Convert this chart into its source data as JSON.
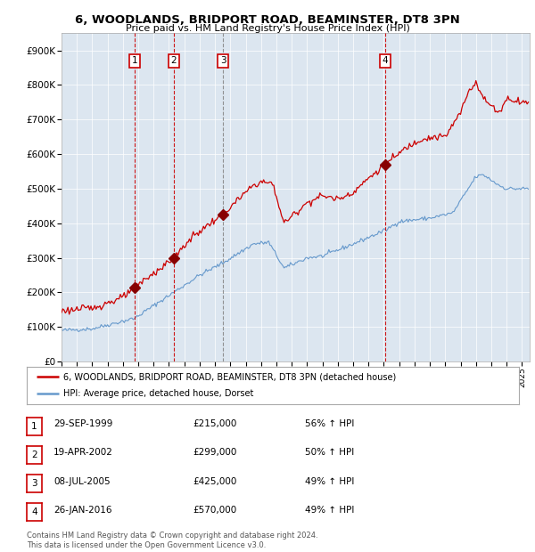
{
  "title": "6, WOODLANDS, BRIDPORT ROAD, BEAMINSTER, DT8 3PN",
  "subtitle": "Price paid vs. HM Land Registry's House Price Index (HPI)",
  "background_color": "#dce6f0",
  "fig_bg_color": "#ffffff",
  "ylim": [
    0,
    950000
  ],
  "xlim_start": 1995.0,
  "xlim_end": 2025.5,
  "sale_dates": [
    1999.747,
    2002.297,
    2005.519,
    2016.069
  ],
  "sale_prices": [
    215000,
    299000,
    425000,
    570000
  ],
  "sale_labels": [
    "1",
    "2",
    "3",
    "4"
  ],
  "vline_styles_red": [
    1999.747,
    2002.297,
    2016.069
  ],
  "vline_styles_gray": [
    2005.519
  ],
  "legend_line1": "6, WOODLANDS, BRIDPORT ROAD, BEAMINSTER, DT8 3PN (detached house)",
  "legend_line2": "HPI: Average price, detached house, Dorset",
  "table_data": [
    [
      "1",
      "29-SEP-1999",
      "£215,000",
      "56% ↑ HPI"
    ],
    [
      "2",
      "19-APR-2002",
      "£299,000",
      "50% ↑ HPI"
    ],
    [
      "3",
      "08-JUL-2005",
      "£425,000",
      "49% ↑ HPI"
    ],
    [
      "4",
      "26-JAN-2016",
      "£570,000",
      "49% ↑ HPI"
    ]
  ],
  "footer": "Contains HM Land Registry data © Crown copyright and database right 2024.\nThis data is licensed under the Open Government Licence v3.0.",
  "red_line_color": "#cc0000",
  "blue_line_color": "#6699cc",
  "marker_color": "#880000",
  "vline_red_color": "#cc0000",
  "vline_gray_color": "#888888",
  "label_box_color": "#cc0000",
  "ytick_labels": [
    "£0",
    "£100K",
    "£200K",
    "£300K",
    "£400K",
    "£500K",
    "£600K",
    "£700K",
    "£800K",
    "£900K"
  ],
  "ytick_values": [
    0,
    100000,
    200000,
    300000,
    400000,
    500000,
    600000,
    700000,
    800000,
    900000
  ],
  "xtick_years": [
    1995,
    1996,
    1997,
    1998,
    1999,
    2000,
    2001,
    2002,
    2003,
    2004,
    2005,
    2006,
    2007,
    2008,
    2009,
    2010,
    2011,
    2012,
    2013,
    2014,
    2015,
    2016,
    2017,
    2018,
    2019,
    2020,
    2021,
    2022,
    2023,
    2024,
    2025
  ]
}
